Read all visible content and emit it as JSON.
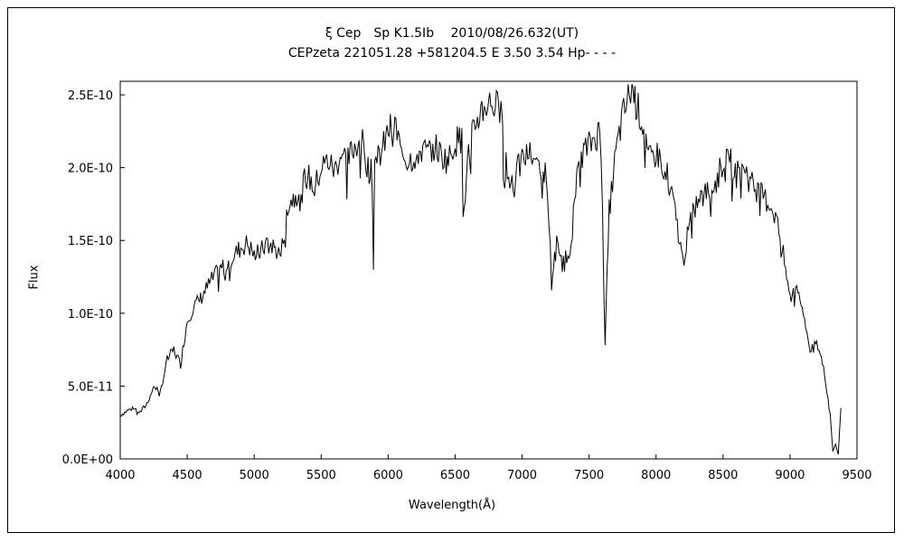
{
  "chart_data": {
    "type": "line",
    "title": "ξ Cep　Sp K1.5Ib　 2010/08/26.632(UT)",
    "subtitle": "CEPzeta 221051.28 +581204.5 E 3.50 3.54 Hp- - - -",
    "xlabel": "Wavelength(Å)",
    "ylabel": "Flux",
    "xlim": [
      4000,
      9500
    ],
    "ylim": [
      0,
      2.5e-10
    ],
    "x_ticks": [
      4000,
      4500,
      5000,
      5500,
      6000,
      6500,
      7000,
      7500,
      8000,
      8500,
      9000,
      9500
    ],
    "y_ticks": [
      0,
      5e-11,
      1e-10,
      1.5e-10,
      2e-10,
      2.5e-10
    ],
    "x_tick_labels": [
      "4000",
      "4500",
      "5000",
      "5500",
      "6000",
      "6500",
      "7000",
      "7500",
      "8000",
      "8500",
      "9000",
      "9500"
    ],
    "y_tick_labels": [
      "0.0E+00",
      "5.0E-11",
      "1.0E-10",
      "1.5E-10",
      "2.0E-10",
      "2.5E-10"
    ],
    "grid": false,
    "series": [
      {
        "x": [
          4000,
          4050,
          4100,
          4150,
          4200,
          4250,
          4300,
          4350,
          4400,
          4450,
          4500,
          4550,
          4600,
          4650,
          4700,
          4750,
          4800,
          4850,
          4900,
          4950,
          5000,
          5050,
          5100,
          5150,
          5200,
          5250,
          5300,
          5350,
          5400,
          5450,
          5500,
          5550,
          5600,
          5650,
          5700,
          5750,
          5800,
          5850,
          5880,
          5890,
          5900,
          5950,
          6000,
          6050,
          6100,
          6150,
          6200,
          6250,
          6300,
          6350,
          6400,
          6450,
          6500,
          6550,
          6560,
          6600,
          6650,
          6700,
          6750,
          6800,
          6850,
          6860,
          6870,
          6880,
          6900,
          6950,
          7000,
          7050,
          7100,
          7150,
          7180,
          7200,
          7220,
          7250,
          7300,
          7350,
          7400,
          7450,
          7500,
          7550,
          7580,
          7600,
          7610,
          7620,
          7650,
          7700,
          7750,
          7800,
          7820,
          7850,
          7900,
          7950,
          8000,
          8050,
          8100,
          8150,
          8200,
          8250,
          8300,
          8350,
          8400,
          8450,
          8500,
          8550,
          8600,
          8650,
          8700,
          8750,
          8800,
          8850,
          8900,
          8950,
          9000,
          9050,
          9100,
          9150,
          9200,
          9250,
          9300,
          9320,
          9340,
          9360,
          9380
        ],
        "y": [
          3e-11,
          3.3e-11,
          3.5e-11,
          3.2e-11,
          3.8e-11,
          5e-11,
          4.6e-11,
          6.8e-11,
          7.5e-11,
          6.5e-11,
          9.5e-11,
          1.05e-10,
          1.1e-10,
          1.18e-10,
          1.25e-10,
          1.3e-10,
          1.35e-10,
          1.4e-10,
          1.45e-10,
          1.48e-10,
          1.4e-10,
          1.42e-10,
          1.5e-10,
          1.45e-10,
          1.4e-10,
          1.75e-10,
          1.8e-10,
          1.88e-10,
          1.95e-10,
          1.85e-10,
          2e-10,
          2.05e-10,
          1.98e-10,
          2.1e-10,
          2.05e-10,
          2.15e-10,
          2.2e-10,
          2e-10,
          1.95e-10,
          1.35e-10,
          2.05e-10,
          2.1e-10,
          2.25e-10,
          2.3e-10,
          2.1e-10,
          2.05e-10,
          2.08e-10,
          2.12e-10,
          2.1e-10,
          2.15e-10,
          2.08e-10,
          2.05e-10,
          2.18e-10,
          2.2e-10,
          1.65e-10,
          2.1e-10,
          2.3e-10,
          2.4e-10,
          2.45e-10,
          2.43e-10,
          2.38e-10,
          2e-10,
          1.85e-10,
          2.05e-10,
          1.9e-10,
          1.95e-10,
          2.05e-10,
          2.1e-10,
          2.05e-10,
          2e-10,
          1.95e-10,
          1.65e-10,
          1.2e-10,
          1.5e-10,
          1.35e-10,
          1.4e-10,
          1.85e-10,
          2.1e-10,
          2.15e-10,
          2.22e-10,
          2.25e-10,
          1.8e-10,
          1.2e-10,
          8e-11,
          1.7e-10,
          2.1e-10,
          2.35e-10,
          2.5e-10,
          2.55e-10,
          2.45e-10,
          2.3e-10,
          2.05e-10,
          2.1e-10,
          2.05e-10,
          1.9e-10,
          1.65e-10,
          1.35e-10,
          1.6e-10,
          1.75e-10,
          1.8e-10,
          1.85e-10,
          1.9e-10,
          2.05e-10,
          2.1e-10,
          1.95e-10,
          2.05e-10,
          1.9e-10,
          1.85e-10,
          1.8e-10,
          1.75e-10,
          1.65e-10,
          1.4e-10,
          1.1e-10,
          1.2e-10,
          1e-10,
          7.5e-11,
          7.8e-11,
          6.5e-11,
          3e-11,
          5e-12,
          1e-11,
          3e-12,
          3.5e-11
        ]
      }
    ]
  }
}
